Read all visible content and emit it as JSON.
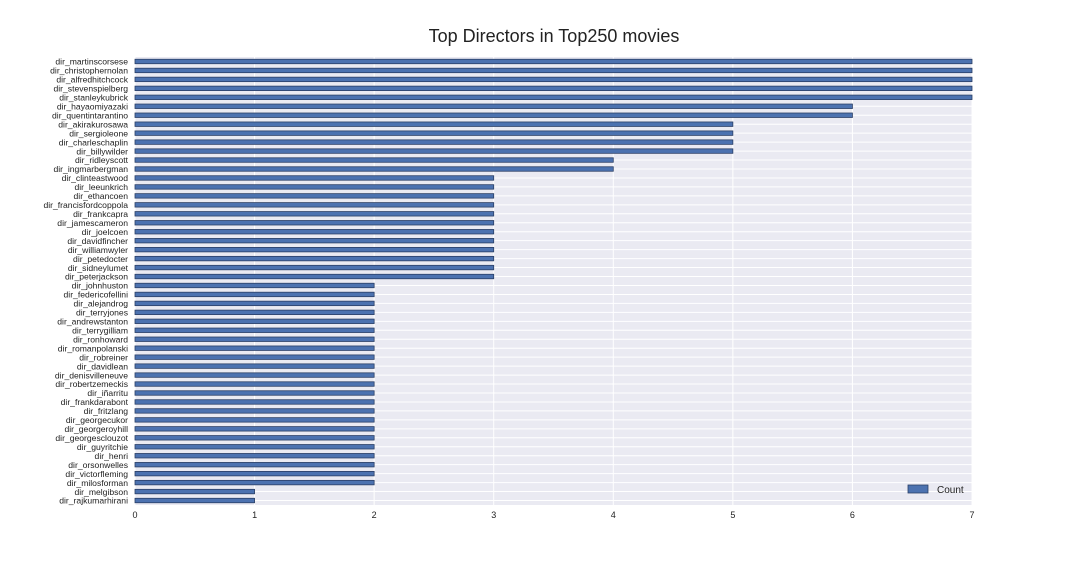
{
  "chart_data": {
    "type": "bar",
    "orientation": "horizontal",
    "title": "Top Directors in Top250 movies",
    "xlabel": "",
    "ylabel": "",
    "xlim": [
      0,
      7
    ],
    "x_ticks": [
      0,
      1,
      2,
      3,
      4,
      5,
      6,
      7
    ],
    "grid": true,
    "legend_position": "lower-right",
    "categories": [
      "dir_martinscorsese",
      "dir_christophernolan",
      "dir_alfredhitchcock",
      "dir_stevenspielberg",
      "dir_stanleykubrick",
      "dir_hayaomiyazaki",
      "dir_quentintarantino",
      "dir_akirakurosawa",
      "dir_sergioleone",
      "dir_charleschaplin",
      "dir_billywilder",
      "dir_ridleyscott",
      "dir_ingmarbergman",
      "dir_clinteastwood",
      "dir_leeunkrich",
      "dir_ethancoen",
      "dir_francisfordcoppola",
      "dir_frankcapra",
      "dir_jamescameron",
      "dir_joelcoen",
      "dir_davidfincher",
      "dir_williamwyler",
      "dir_petedocter",
      "dir_sidneylumet",
      "dir_peterjackson",
      "dir_johnhuston",
      "dir_federicofellini",
      "dir_alejandrog",
      "dir_terryjones",
      "dir_andrewstanton",
      "dir_terrygilliam",
      "dir_ronhoward",
      "dir_romanpolanski",
      "dir_robreiner",
      "dir_davidlean",
      "dir_denisvilleneuve",
      "dir_robertzemeckis",
      "dir_iñarritu",
      "dir_frankdarabont",
      "dir_fritzlang",
      "dir_georgecukor",
      "dir_georgeroyhill",
      "dir_georgesclouzot",
      "dir_guyritchie",
      "dir_henri",
      "dir_orsonwelles",
      "dir_victorfleming",
      "dir_milosforman",
      "dir_melgibson",
      "dir_rajkumarhirani"
    ],
    "series": [
      {
        "name": "Count",
        "values": [
          7,
          7,
          7,
          7,
          7,
          6,
          6,
          5,
          5,
          5,
          5,
          4,
          4,
          3,
          3,
          3,
          3,
          3,
          3,
          3,
          3,
          3,
          3,
          3,
          3,
          2,
          2,
          2,
          2,
          2,
          2,
          2,
          2,
          2,
          2,
          2,
          2,
          2,
          2,
          2,
          2,
          2,
          2,
          2,
          2,
          2,
          2,
          2,
          1,
          1
        ]
      }
    ],
    "colors": {
      "bar": "#4c72b0",
      "bar_edge": "#2b3f66",
      "plot_background": "#eaeaf2",
      "grid": "#ffffff",
      "text": "#222222"
    }
  }
}
